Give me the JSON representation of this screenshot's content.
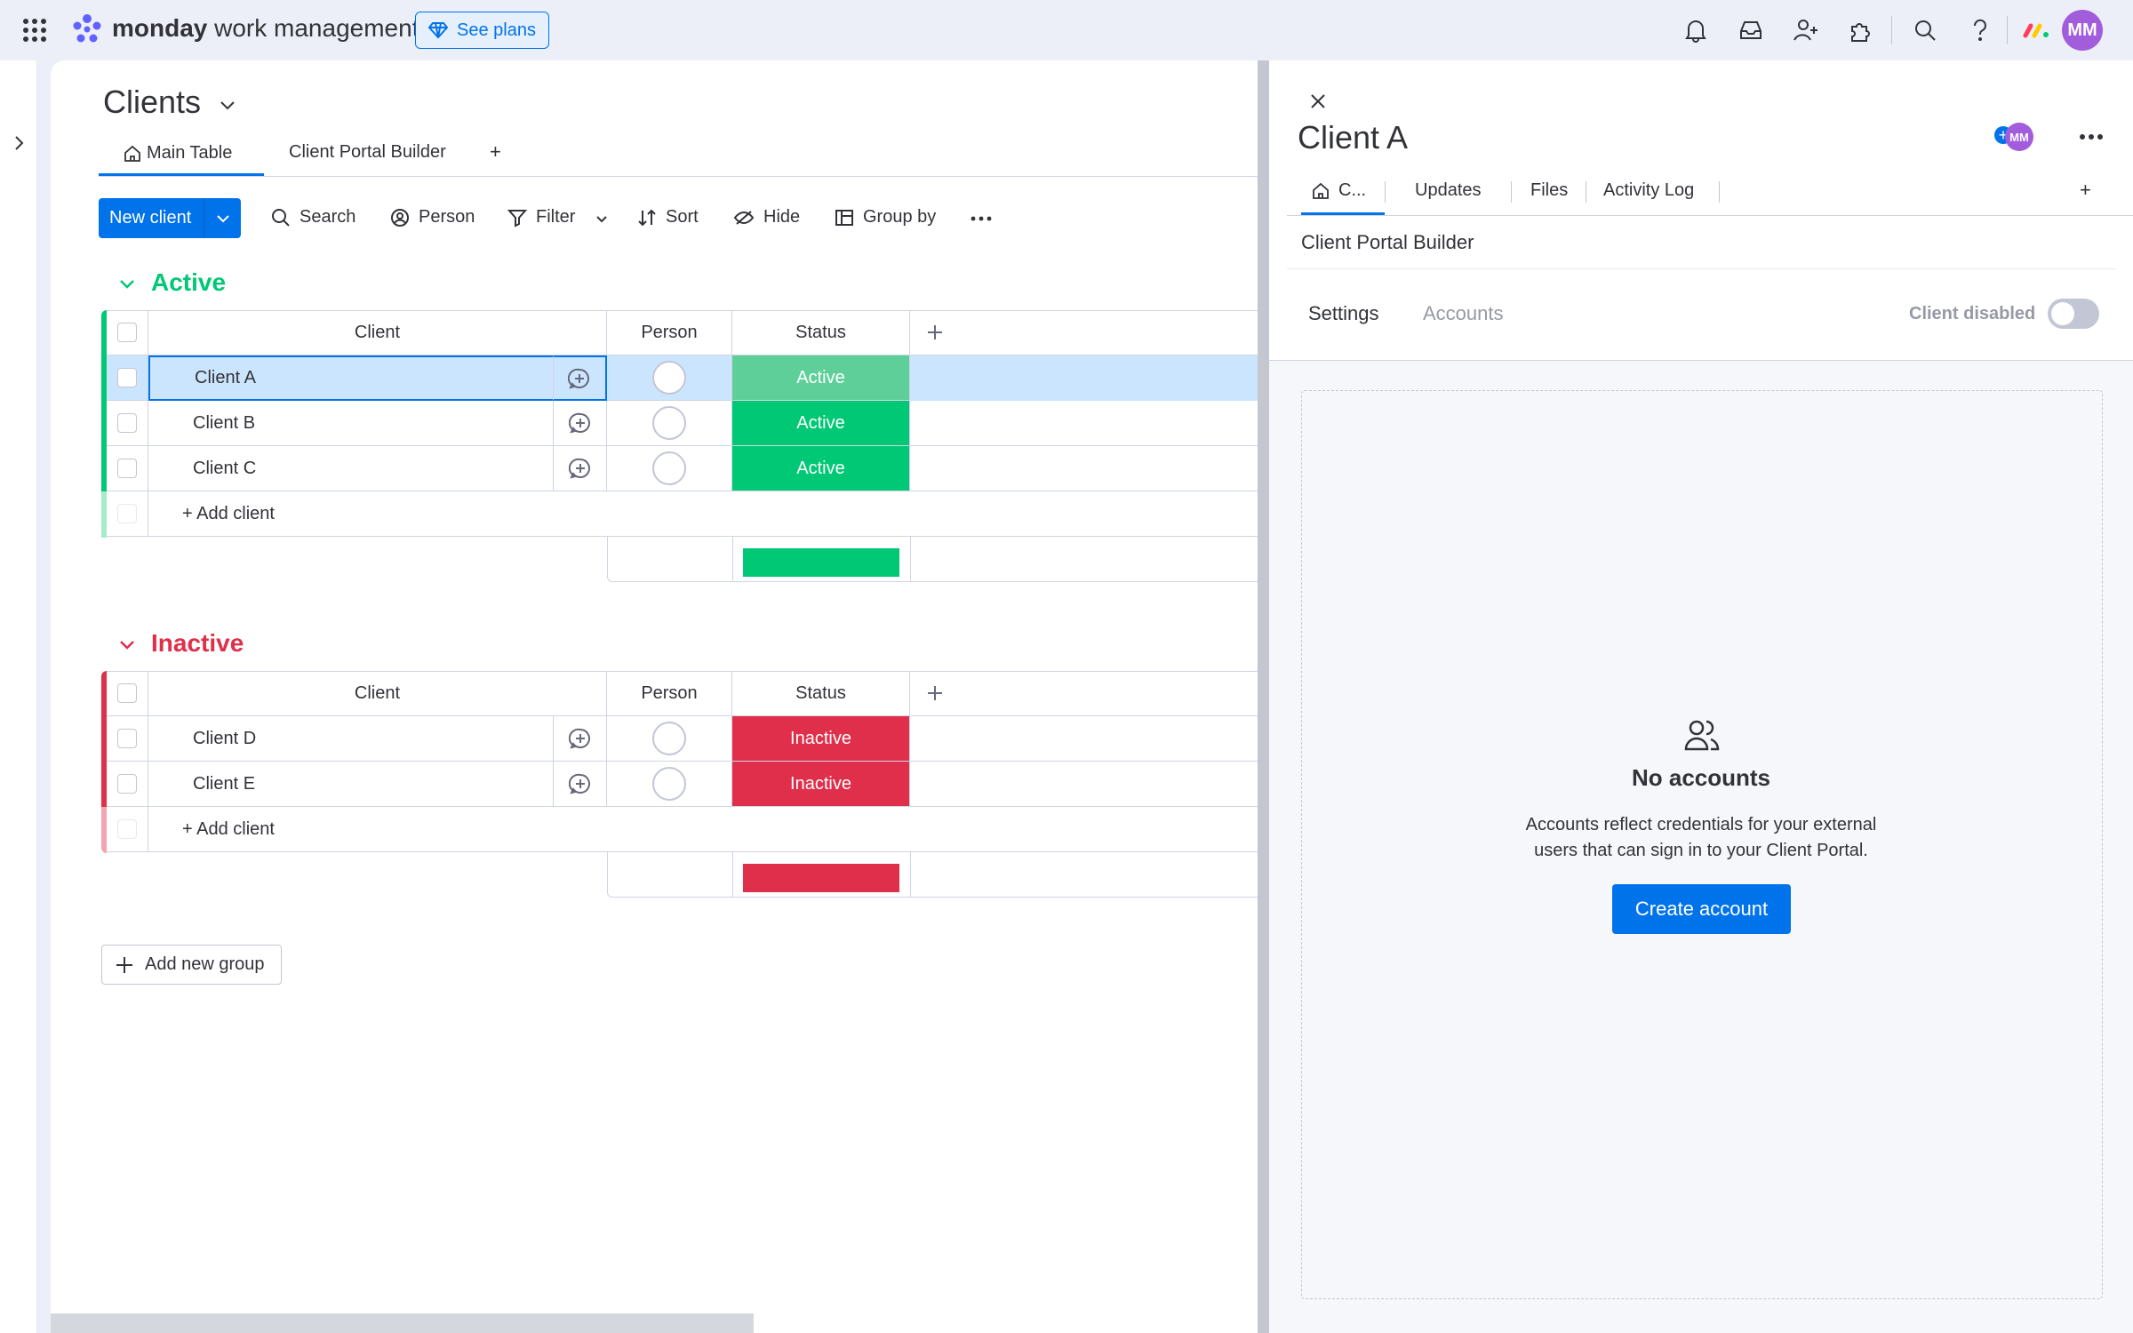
{
  "topbar": {
    "brand_bold": "monday",
    "brand_rest": "work management",
    "see_plans": "See plans",
    "avatar_initials": "MM"
  },
  "board": {
    "title": "Clients",
    "tabs": [
      {
        "label": "Main Table",
        "icon": "home-icon",
        "active": true
      },
      {
        "label": "Client Portal Builder",
        "active": false
      }
    ],
    "add_tab": "+",
    "toolbar": {
      "new_item": "New client",
      "search": "Search",
      "person": "Person",
      "filter": "Filter",
      "sort": "Sort",
      "hide": "Hide",
      "group_by": "Group by"
    },
    "columns": [
      "Client",
      "Person",
      "Status"
    ],
    "groups": [
      {
        "title": "Active",
        "color": "#00c875",
        "rows": [
          {
            "name": "Client A",
            "status": "Active",
            "selected": true
          },
          {
            "name": "Client B",
            "status": "Active",
            "selected": false
          },
          {
            "name": "Client C",
            "status": "Active",
            "selected": false
          }
        ],
        "add_item": "+ Add client"
      },
      {
        "title": "Inactive",
        "color": "#df2f4a",
        "rows": [
          {
            "name": "Client D",
            "status": "Inactive",
            "selected": false
          },
          {
            "name": "Client E",
            "status": "Inactive",
            "selected": false
          }
        ],
        "add_item": "+ Add client"
      }
    ],
    "add_group": "Add new group"
  },
  "panel": {
    "item_title": "Client A",
    "avatar_initials": "MM",
    "tabs": [
      {
        "label": "C...",
        "icon": "home-icon",
        "active": true
      },
      {
        "label": "Updates",
        "active": false
      },
      {
        "label": "Files",
        "active": false
      },
      {
        "label": "Activity Log",
        "active": false
      }
    ],
    "add_tab": "+",
    "section_title": "Client Portal Builder",
    "subtabs": [
      {
        "label": "Settings",
        "active": true
      },
      {
        "label": "Accounts",
        "active": false
      }
    ],
    "toggle_label": "Client disabled",
    "toggle_on": false,
    "empty_title": "No accounts",
    "empty_desc_line1": "Accounts reflect credentials for your external",
    "empty_desc_line2": "users that can sign in to your Client Portal.",
    "create_button": "Create account"
  },
  "colors": {
    "accent": "#0073ea",
    "active_status": "#00c875",
    "active_status_selected": "#5fcf99",
    "inactive_status": "#df2f4a",
    "selected_row": "#cce5ff"
  }
}
